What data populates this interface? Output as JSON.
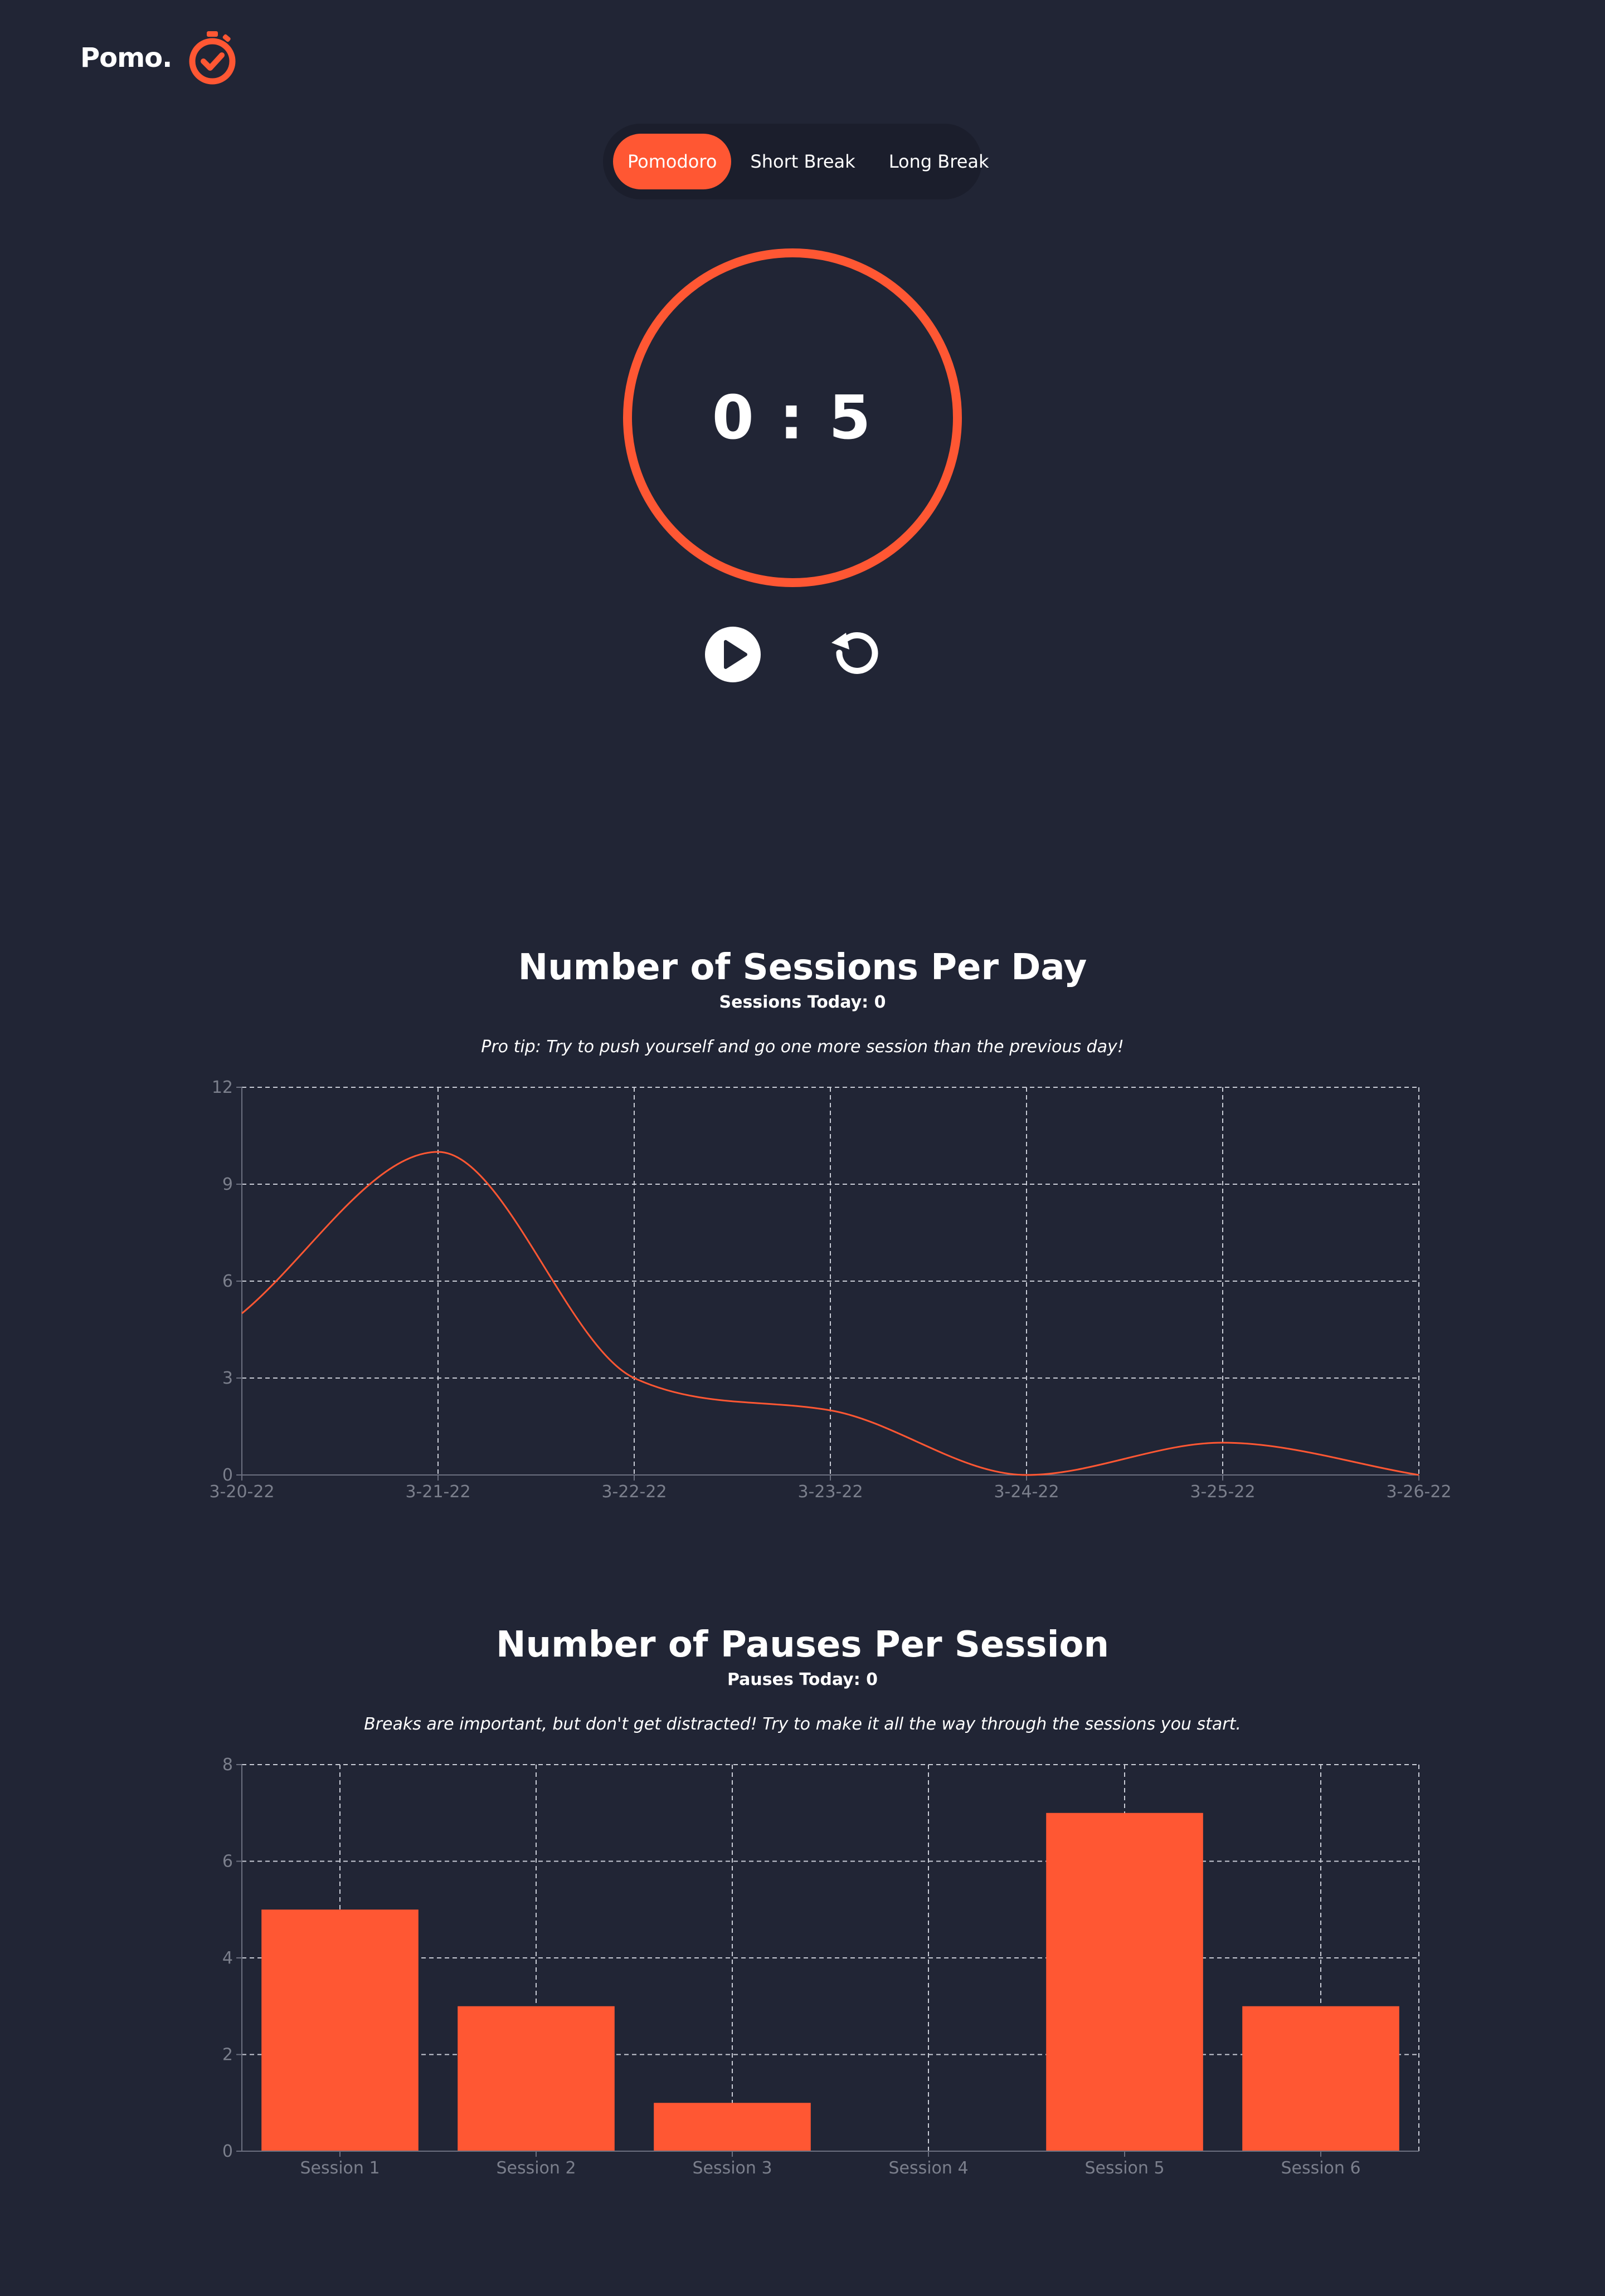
{
  "brand": {
    "name": "Pomo.",
    "icon": "stopwatch-check-icon",
    "accent": "#ff5733"
  },
  "modes": {
    "items": [
      {
        "label": "Pomodoro",
        "active": true
      },
      {
        "label": "Short Break",
        "active": false
      },
      {
        "label": "Long Break",
        "active": false
      }
    ]
  },
  "timer": {
    "display": "0 : 5"
  },
  "controls": {
    "play_icon": "play-icon",
    "reset_icon": "reset-icon"
  },
  "sessions_chart": {
    "heading": "Number of Sessions Per Day",
    "today_label": "Sessions Today: 0",
    "tip": "Pro tip: Try to push yourself and go one more session than the previous day!"
  },
  "pauses_chart": {
    "heading": "Number of Pauses Per Session",
    "today_label": "Pauses Today: 0",
    "tip": "Breaks are important, but don't get distracted! Try to make it all the way through the sessions you start."
  },
  "chart_data": [
    {
      "type": "line",
      "title": "Number of Sessions Per Day",
      "x": [
        "3-20-22",
        "3-21-22",
        "3-22-22",
        "3-23-22",
        "3-24-22",
        "3-25-22",
        "3-26-22"
      ],
      "series": [
        {
          "values": [
            5,
            10,
            3,
            2,
            0,
            1,
            0
          ]
        }
      ],
      "yticks": [
        0,
        3,
        6,
        9,
        12
      ],
      "ylim": [
        0,
        12
      ],
      "grid": true,
      "line_color": "#ff5733",
      "curve": "smooth"
    },
    {
      "type": "bar",
      "title": "Number of Pauses Per Session",
      "categories": [
        "Session 1",
        "Session 2",
        "Session 3",
        "Session 4",
        "Session 5",
        "Session 6"
      ],
      "values": [
        5,
        3,
        1,
        0,
        7,
        3
      ],
      "yticks": [
        0,
        2,
        4,
        6,
        8
      ],
      "ylim": [
        0,
        8
      ],
      "grid": true,
      "bar_color": "#ff5733"
    }
  ]
}
